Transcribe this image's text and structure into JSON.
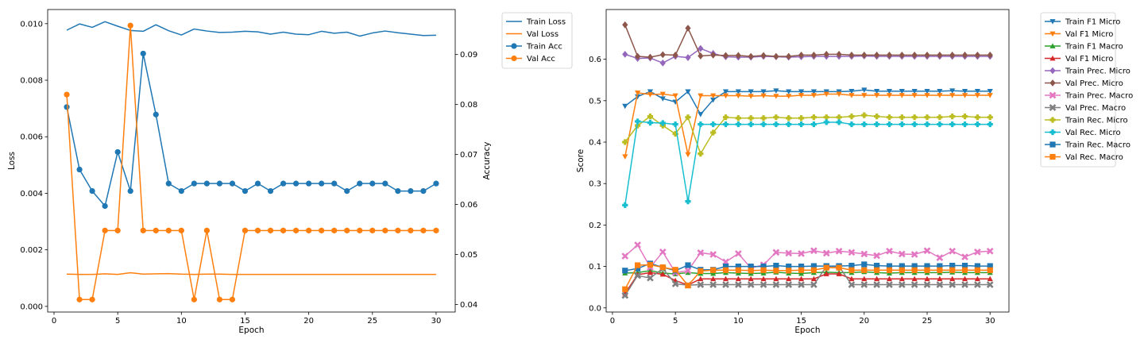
{
  "chart_data": [
    {
      "type": "line",
      "title": "",
      "xlabel": "Epoch",
      "ylabel": "Loss",
      "y2label": "Accuracy",
      "xlim": [
        -0.5,
        31.5
      ],
      "ylim": [
        -0.0002,
        0.0105
      ],
      "y2lim": [
        0.0385,
        0.099
      ],
      "x_ticks": [
        0,
        5,
        10,
        15,
        20,
        25,
        30
      ],
      "y_ticks": [
        0.0,
        0.002,
        0.004,
        0.006,
        0.008,
        0.01
      ],
      "y_tick_labels": [
        "0.000",
        "0.002",
        "0.004",
        "0.006",
        "0.008",
        "0.010"
      ],
      "y2_ticks": [
        0.04,
        0.05,
        0.06,
        0.07,
        0.08,
        0.09
      ],
      "y2_tick_labels": [
        "0.04",
        "0.05",
        "0.06",
        "0.07",
        "0.08",
        "0.09"
      ],
      "grid": false,
      "legend_position": "outside-right",
      "x": [
        1,
        2,
        3,
        4,
        5,
        6,
        7,
        8,
        9,
        10,
        11,
        12,
        13,
        14,
        15,
        16,
        17,
        18,
        19,
        20,
        21,
        22,
        23,
        24,
        25,
        26,
        27,
        28,
        29,
        30
      ],
      "series": [
        {
          "name": "Train Loss",
          "axis": "left",
          "color": "#1f77b4",
          "marker": "none",
          "values": [
            0.00977,
            0.00999,
            0.00987,
            0.01007,
            0.00991,
            0.00976,
            0.00973,
            0.00996,
            0.00975,
            0.0096,
            0.00981,
            0.00974,
            0.00969,
            0.0097,
            0.00973,
            0.00971,
            0.00963,
            0.0097,
            0.00963,
            0.00961,
            0.00973,
            0.00966,
            0.0097,
            0.00956,
            0.00967,
            0.00974,
            0.00968,
            0.00963,
            0.00958,
            0.00959
          ]
        },
        {
          "name": "Val Loss",
          "axis": "left",
          "color": "#ff7f0e",
          "marker": "none",
          "values": [
            0.00114,
            0.00113,
            0.00113,
            0.00115,
            0.00113,
            0.00119,
            0.00114,
            0.00115,
            0.00116,
            0.00114,
            0.00113,
            0.00114,
            0.00114,
            0.00113,
            0.00113,
            0.00113,
            0.00113,
            0.00113,
            0.00113,
            0.00113,
            0.00113,
            0.00113,
            0.00113,
            0.00113,
            0.00113,
            0.00113,
            0.00113,
            0.00113,
            0.00113,
            0.00113
          ]
        },
        {
          "name": "Train Acc",
          "axis": "right",
          "color": "#1f77b4",
          "marker": "circle",
          "values": [
            0.0795,
            0.067,
            0.0627,
            0.0597,
            0.0705,
            0.0627,
            0.0902,
            0.078,
            0.0642,
            0.0627,
            0.0642,
            0.0642,
            0.0642,
            0.0642,
            0.0627,
            0.0642,
            0.0627,
            0.0642,
            0.0642,
            0.0642,
            0.0642,
            0.0642,
            0.0627,
            0.0642,
            0.0642,
            0.0642,
            0.0627,
            0.0627,
            0.0627,
            0.0642
          ]
        },
        {
          "name": "Val Acc",
          "axis": "right",
          "color": "#ff7f0e",
          "marker": "circle",
          "values": [
            0.082,
            0.041,
            0.041,
            0.0548,
            0.0548,
            0.0958,
            0.0548,
            0.0548,
            0.0548,
            0.0548,
            0.041,
            0.0548,
            0.041,
            0.041,
            0.0548,
            0.0548,
            0.0548,
            0.0548,
            0.0548,
            0.0548,
            0.0548,
            0.0548,
            0.0548,
            0.0548,
            0.0548,
            0.0548,
            0.0548,
            0.0548,
            0.0548,
            0.0548
          ]
        }
      ]
    },
    {
      "type": "line",
      "title": "",
      "xlabel": "Epoch",
      "ylabel": "Score",
      "xlim": [
        -0.5,
        31.5
      ],
      "ylim": [
        -0.01,
        0.72
      ],
      "x_ticks": [
        0,
        5,
        10,
        15,
        20,
        25,
        30
      ],
      "y_ticks": [
        0.0,
        0.1,
        0.2,
        0.3,
        0.4,
        0.5,
        0.6
      ],
      "y_tick_labels": [
        "0.0",
        "0.1",
        "0.2",
        "0.3",
        "0.4",
        "0.5",
        "0.6"
      ],
      "grid": false,
      "legend_position": "outside-right",
      "x": [
        1,
        2,
        3,
        4,
        5,
        6,
        7,
        8,
        9,
        10,
        11,
        12,
        13,
        14,
        15,
        16,
        17,
        18,
        19,
        20,
        21,
        22,
        23,
        24,
        25,
        26,
        27,
        28,
        29,
        30
      ],
      "series": [
        {
          "name": "Train F1 Micro",
          "color": "#1f77b4",
          "marker": "triangle-down",
          "values": [
            0.487,
            0.51,
            0.522,
            0.505,
            0.497,
            0.522,
            0.467,
            0.502,
            0.522,
            0.522,
            0.522,
            0.522,
            0.524,
            0.522,
            0.522,
            0.522,
            0.522,
            0.522,
            0.523,
            0.526,
            0.523,
            0.523,
            0.523,
            0.523,
            0.523,
            0.523,
            0.524,
            0.523,
            0.523,
            0.523
          ]
        },
        {
          "name": "Val F1 Micro",
          "color": "#ff7f0e",
          "marker": "triangle-down",
          "values": [
            0.365,
            0.519,
            0.515,
            0.516,
            0.512,
            0.37,
            0.512,
            0.512,
            0.512,
            0.512,
            0.511,
            0.512,
            0.511,
            0.511,
            0.513,
            0.513,
            0.516,
            0.516,
            0.513,
            0.513,
            0.513,
            0.513,
            0.513,
            0.513,
            0.513,
            0.513,
            0.513,
            0.513,
            0.513,
            0.513
          ]
        },
        {
          "name": "Train F1 Macro",
          "color": "#2ca02c",
          "marker": "triangle-up",
          "values": [
            0.084,
            0.085,
            0.09,
            0.084,
            0.082,
            0.085,
            0.083,
            0.083,
            0.085,
            0.084,
            0.083,
            0.084,
            0.086,
            0.084,
            0.083,
            0.085,
            0.086,
            0.085,
            0.085,
            0.087,
            0.085,
            0.084,
            0.085,
            0.085,
            0.085,
            0.085,
            0.086,
            0.085,
            0.085,
            0.085
          ]
        },
        {
          "name": "Val F1 Micro",
          "color": "#d62728",
          "marker": "triangle-up",
          "values": [
            0.035,
            0.08,
            0.085,
            0.081,
            0.066,
            0.055,
            0.07,
            0.07,
            0.07,
            0.07,
            0.07,
            0.07,
            0.07,
            0.07,
            0.07,
            0.07,
            0.082,
            0.082,
            0.07,
            0.07,
            0.07,
            0.07,
            0.07,
            0.07,
            0.07,
            0.07,
            0.07,
            0.07,
            0.07,
            0.07
          ]
        },
        {
          "name": "Train Prec. Micro",
          "color": "#9467bd",
          "marker": "diamond",
          "values": [
            0.612,
            0.602,
            0.603,
            0.591,
            0.607,
            0.604,
            0.626,
            0.614,
            0.606,
            0.605,
            0.605,
            0.607,
            0.606,
            0.605,
            0.606,
            0.607,
            0.607,
            0.607,
            0.607,
            0.608,
            0.607,
            0.607,
            0.607,
            0.607,
            0.607,
            0.607,
            0.607,
            0.607,
            0.607,
            0.607
          ]
        },
        {
          "name": "Val Prec. Micro",
          "color": "#8c564b",
          "marker": "diamond",
          "values": [
            0.683,
            0.607,
            0.605,
            0.611,
            0.61,
            0.675,
            0.608,
            0.61,
            0.609,
            0.609,
            0.607,
            0.609,
            0.607,
            0.607,
            0.61,
            0.61,
            0.612,
            0.612,
            0.61,
            0.61,
            0.61,
            0.61,
            0.61,
            0.61,
            0.61,
            0.61,
            0.61,
            0.61,
            0.61,
            0.61
          ]
        },
        {
          "name": "Train Prec. Macro",
          "color": "#e377c2",
          "marker": "x",
          "values": [
            0.125,
            0.152,
            0.098,
            0.135,
            0.085,
            0.09,
            0.133,
            0.129,
            0.111,
            0.131,
            0.096,
            0.104,
            0.134,
            0.132,
            0.131,
            0.138,
            0.132,
            0.137,
            0.134,
            0.13,
            0.126,
            0.137,
            0.13,
            0.129,
            0.138,
            0.121,
            0.137,
            0.123,
            0.135,
            0.137
          ]
        },
        {
          "name": "Val Prec. Macro",
          "color": "#7f7f7f",
          "marker": "x",
          "values": [
            0.03,
            0.078,
            0.072,
            0.095,
            0.058,
            0.055,
            0.056,
            0.056,
            0.056,
            0.056,
            0.056,
            0.056,
            0.056,
            0.056,
            0.056,
            0.056,
            0.1,
            0.1,
            0.056,
            0.056,
            0.056,
            0.056,
            0.056,
            0.056,
            0.056,
            0.056,
            0.056,
            0.056,
            0.056,
            0.056
          ]
        },
        {
          "name": "Train Rec. Micro",
          "color": "#bcbd22",
          "marker": "plus",
          "values": [
            0.4,
            0.44,
            0.462,
            0.44,
            0.42,
            0.46,
            0.372,
            0.423,
            0.46,
            0.458,
            0.458,
            0.458,
            0.46,
            0.458,
            0.458,
            0.46,
            0.46,
            0.46,
            0.462,
            0.465,
            0.462,
            0.46,
            0.46,
            0.46,
            0.46,
            0.46,
            0.462,
            0.462,
            0.46,
            0.46
          ]
        },
        {
          "name": "Val Rec. Micro",
          "color": "#17becf",
          "marker": "plus",
          "values": [
            0.248,
            0.45,
            0.447,
            0.446,
            0.443,
            0.257,
            0.443,
            0.443,
            0.443,
            0.443,
            0.443,
            0.443,
            0.443,
            0.443,
            0.443,
            0.443,
            0.448,
            0.448,
            0.443,
            0.443,
            0.443,
            0.443,
            0.443,
            0.443,
            0.443,
            0.443,
            0.443,
            0.443,
            0.443,
            0.443
          ]
        },
        {
          "name": "Train Rec. Macro",
          "color": "#1f77b4",
          "marker": "square",
          "values": [
            0.09,
            0.095,
            0.107,
            0.098,
            0.09,
            0.103,
            0.092,
            0.092,
            0.1,
            0.1,
            0.1,
            0.1,
            0.102,
            0.1,
            0.1,
            0.101,
            0.101,
            0.101,
            0.102,
            0.105,
            0.102,
            0.101,
            0.101,
            0.101,
            0.101,
            0.101,
            0.102,
            0.102,
            0.101,
            0.101
          ]
        },
        {
          "name": "Val Rec. Macro",
          "color": "#ff7f0e",
          "marker": "square",
          "values": [
            0.045,
            0.103,
            0.104,
            0.098,
            0.092,
            0.054,
            0.089,
            0.091,
            0.091,
            0.091,
            0.09,
            0.091,
            0.09,
            0.09,
            0.091,
            0.091,
            0.097,
            0.097,
            0.091,
            0.091,
            0.091,
            0.091,
            0.091,
            0.091,
            0.091,
            0.091,
            0.091,
            0.091,
            0.091,
            0.091
          ]
        }
      ]
    }
  ]
}
